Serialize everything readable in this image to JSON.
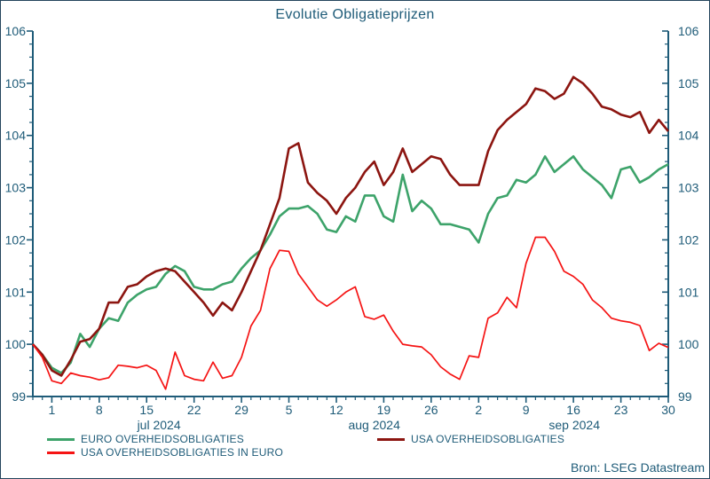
{
  "title": "Evolutie Obligatieprijzen",
  "source": "Bron: LSEG Datastream",
  "colors": {
    "text": "#1e5b78",
    "axis": "#1e5b78",
    "border": "#24455c",
    "background": "#ffffff",
    "euro": "#3da36a",
    "usa": "#8c1510",
    "usa_in_euro": "#f51414"
  },
  "legend": {
    "items": [
      {
        "label": "EURO OVERHEIDSOBLIGATIES",
        "color_key": "euro"
      },
      {
        "label": "USA OVERHEIDSOBLIGATIES",
        "color_key": "usa"
      },
      {
        "label": "USA OVERHEIDSOBLIGATIES IN EURO",
        "color_key": "usa_in_euro"
      }
    ]
  },
  "chart_data": {
    "type": "line",
    "title": "Evolutie Obligatieprijzen",
    "grid": false,
    "legend_position": "bottom",
    "ylim": [
      99,
      106
    ],
    "y_major_ticks": [
      99,
      100,
      101,
      102,
      103,
      104,
      105,
      106
    ],
    "y_minor_step": 0.25,
    "x_axis": {
      "frequency": "weekdays",
      "start_date": "2024-06-27",
      "end_date": "2024-09-30",
      "major_tick_labels": [
        "1",
        "8",
        "15",
        "22",
        "29",
        "5",
        "12",
        "19",
        "26",
        "2",
        "9",
        "16",
        "23",
        "30"
      ],
      "major_tick_indices": [
        2,
        7,
        12,
        17,
        22,
        27,
        32,
        37,
        42,
        47,
        52,
        57,
        62,
        67
      ],
      "month_labels": [
        {
          "label": "jul 2024",
          "index": 13.3
        },
        {
          "label": "aug 2024",
          "index": 36.0
        },
        {
          "label": "sep 2024",
          "index": 57.1
        }
      ]
    },
    "series": [
      {
        "name": "EURO OVERHEIDSOBLIGATIES",
        "color_key": "euro",
        "width": 2.6,
        "values": [
          100.0,
          99.8,
          99.55,
          99.45,
          99.65,
          100.2,
          99.95,
          100.3,
          100.5,
          100.45,
          100.8,
          100.95,
          101.05,
          101.1,
          101.35,
          101.5,
          101.4,
          101.1,
          101.05,
          101.05,
          101.15,
          101.2,
          101.45,
          101.65,
          101.8,
          102.1,
          102.45,
          102.6,
          102.6,
          102.65,
          102.5,
          102.2,
          102.15,
          102.45,
          102.35,
          102.85,
          102.85,
          102.45,
          102.35,
          103.25,
          102.55,
          102.75,
          102.6,
          102.3,
          102.3,
          102.25,
          102.2,
          101.95,
          102.5,
          102.8,
          102.85,
          103.15,
          103.1,
          103.25,
          103.6,
          103.3,
          103.45,
          103.6,
          103.35,
          103.2,
          103.05,
          102.8,
          103.35,
          103.4,
          103.1,
          103.2,
          103.35,
          103.45
        ]
      },
      {
        "name": "USA OVERHEIDSOBLIGATIES",
        "color_key": "usa",
        "width": 2.6,
        "values": [
          100.0,
          99.8,
          99.5,
          99.4,
          99.7,
          100.05,
          100.1,
          100.3,
          100.8,
          100.8,
          101.1,
          101.15,
          101.3,
          101.4,
          101.45,
          101.4,
          101.2,
          101.0,
          100.8,
          100.55,
          100.8,
          100.65,
          101.0,
          101.4,
          101.8,
          102.3,
          102.8,
          103.75,
          103.85,
          103.1,
          102.9,
          102.75,
          102.5,
          102.8,
          103.0,
          103.3,
          103.5,
          103.05,
          103.3,
          103.75,
          103.3,
          103.45,
          103.6,
          103.55,
          103.25,
          103.05,
          103.05,
          103.05,
          103.7,
          104.1,
          104.3,
          104.45,
          104.6,
          104.9,
          104.85,
          104.7,
          104.8,
          105.12,
          105.0,
          104.8,
          104.55,
          104.5,
          104.4,
          104.35,
          104.45,
          104.05,
          104.3,
          104.08
        ]
      },
      {
        "name": "USA OVERHEIDSOBLIGATIES IN EURO",
        "color_key": "usa_in_euro",
        "width": 1.7,
        "values": [
          100.0,
          99.75,
          99.3,
          99.25,
          99.45,
          99.4,
          99.37,
          99.32,
          99.36,
          99.6,
          99.58,
          99.55,
          99.6,
          99.5,
          99.14,
          99.85,
          99.4,
          99.33,
          99.3,
          99.66,
          99.35,
          99.4,
          99.75,
          100.35,
          100.65,
          101.45,
          101.8,
          101.78,
          101.35,
          101.1,
          100.85,
          100.73,
          100.85,
          101.0,
          101.1,
          100.53,
          100.48,
          100.56,
          100.25,
          100.0,
          99.97,
          99.95,
          99.8,
          99.57,
          99.43,
          99.33,
          99.78,
          99.75,
          100.5,
          100.6,
          100.9,
          100.7,
          101.55,
          102.05,
          102.05,
          101.78,
          101.4,
          101.3,
          101.15,
          100.85,
          100.7,
          100.5,
          100.45,
          100.42,
          100.36,
          99.88,
          100.02,
          99.94
        ]
      }
    ]
  }
}
